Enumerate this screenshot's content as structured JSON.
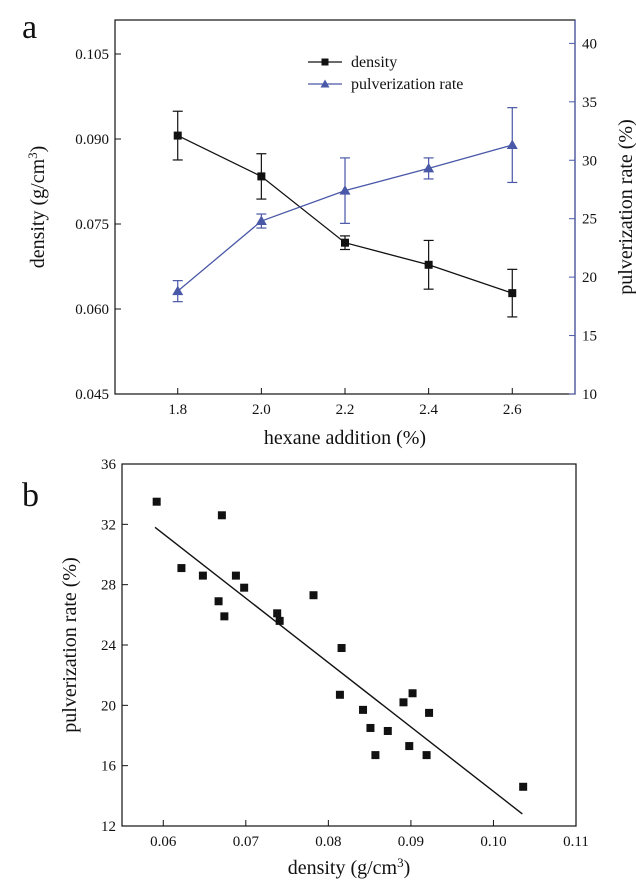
{
  "chart_data": [
    {
      "type": "line",
      "panel_label": "a",
      "xlabel": "hexane addition  (%)",
      "ylabel_left": "density  (g/cm",
      "ylabel_left_sup": "3",
      "ylabel_left_close": ")",
      "ylabel_right": "pulverization rate (%)",
      "xlim": [
        1.65,
        2.75
      ],
      "ylim_left": [
        0.045,
        0.111
      ],
      "ylim_right": [
        10,
        42
      ],
      "x_ticks": [
        "1.8",
        "2.0",
        "2.2",
        "2.4",
        "2.6"
      ],
      "y_left_ticks": [
        "0.045",
        "0.060",
        "0.075",
        "0.090",
        "0.105"
      ],
      "y_right_ticks": [
        "10",
        "15",
        "20",
        "25",
        "30",
        "35",
        "40"
      ],
      "legend_position": "top-center",
      "x": [
        1.8,
        2.0,
        2.2,
        2.4,
        2.6
      ],
      "series": [
        {
          "name": "density",
          "axis": "left",
          "marker": "square",
          "color": "#111111",
          "values": [
            0.0906,
            0.0834,
            0.0717,
            0.0678,
            0.0628
          ],
          "errors": [
            0.0043,
            0.004,
            0.0012,
            0.0043,
            0.0042
          ]
        },
        {
          "name": "pulverization rate",
          "axis": "right",
          "marker": "triangle",
          "color": "#4a58a8",
          "values": [
            18.8,
            24.8,
            27.4,
            29.3,
            31.3
          ],
          "errors": [
            0.9,
            0.6,
            2.8,
            0.9,
            3.2
          ]
        }
      ]
    },
    {
      "type": "scatter",
      "panel_label": "b",
      "xlabel": "density (g/cm",
      "xlabel_sup": "3",
      "xlabel_close": ")",
      "ylabel": "pulverization rate (%)",
      "xlim": [
        0.055,
        0.11
      ],
      "ylim": [
        12,
        36
      ],
      "x_ticks": [
        "0.06",
        "0.07",
        "0.08",
        "0.09",
        "0.10",
        "0.11"
      ],
      "y_ticks": [
        "12",
        "16",
        "20",
        "24",
        "28",
        "32",
        "36"
      ],
      "fit_line": {
        "x": [
          0.059,
          0.1035
        ],
        "y": [
          31.8,
          12.8
        ]
      },
      "points": [
        {
          "x": 0.0592,
          "y": 33.5
        },
        {
          "x": 0.0622,
          "y": 29.1
        },
        {
          "x": 0.0648,
          "y": 28.6
        },
        {
          "x": 0.0667,
          "y": 26.9
        },
        {
          "x": 0.0671,
          "y": 32.6
        },
        {
          "x": 0.0674,
          "y": 25.9
        },
        {
          "x": 0.0688,
          "y": 28.6
        },
        {
          "x": 0.0698,
          "y": 27.8
        },
        {
          "x": 0.0738,
          "y": 26.1
        },
        {
          "x": 0.0741,
          "y": 25.6
        },
        {
          "x": 0.0782,
          "y": 27.3
        },
        {
          "x": 0.0814,
          "y": 20.7
        },
        {
          "x": 0.0816,
          "y": 23.8
        },
        {
          "x": 0.0842,
          "y": 19.7
        },
        {
          "x": 0.0851,
          "y": 18.5
        },
        {
          "x": 0.0857,
          "y": 16.7
        },
        {
          "x": 0.0872,
          "y": 18.3
        },
        {
          "x": 0.0891,
          "y": 20.2
        },
        {
          "x": 0.0898,
          "y": 17.3
        },
        {
          "x": 0.0902,
          "y": 20.8
        },
        {
          "x": 0.0919,
          "y": 16.7
        },
        {
          "x": 0.0922,
          "y": 19.5
        },
        {
          "x": 0.1036,
          "y": 14.6
        }
      ]
    }
  ]
}
